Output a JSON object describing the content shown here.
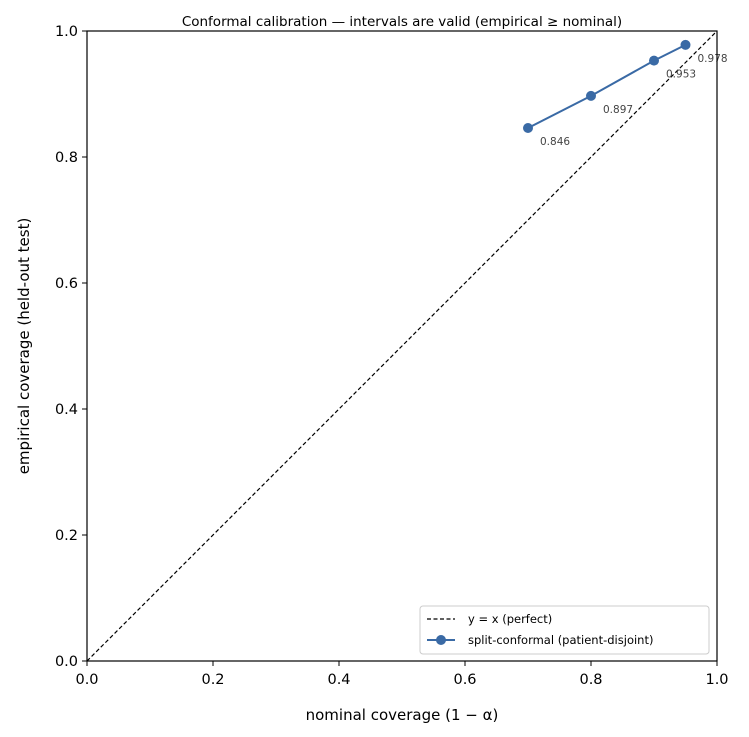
{
  "chart_data": {
    "type": "line",
    "title": "Conformal calibration — intervals are valid (empirical ≥ nominal)",
    "xlabel": "nominal coverage  (1 − α)",
    "ylabel": "empirical coverage  (held-out test)",
    "xlim": [
      0.0,
      1.0
    ],
    "ylim": [
      0.0,
      1.0
    ],
    "xticks": [
      "0.0",
      "0.2",
      "0.4",
      "0.6",
      "0.8",
      "1.0"
    ],
    "yticks": [
      "0.0",
      "0.2",
      "0.4",
      "0.6",
      "0.8",
      "1.0"
    ],
    "grid": false,
    "legend_position": "bottom-right",
    "series": [
      {
        "name": "y = x (perfect)",
        "style": "dashed",
        "color": "#000000",
        "x": [
          0.0,
          1.0
        ],
        "y": [
          0.0,
          1.0
        ]
      },
      {
        "name": "split-conformal (patient-disjoint)",
        "style": "line-marker",
        "color": "#3a6aa5",
        "x": [
          0.7,
          0.8,
          0.9,
          0.95
        ],
        "y": [
          0.846,
          0.897,
          0.953,
          0.978
        ],
        "labels": [
          "0.846",
          "0.897",
          "0.953",
          "0.978"
        ]
      }
    ]
  }
}
